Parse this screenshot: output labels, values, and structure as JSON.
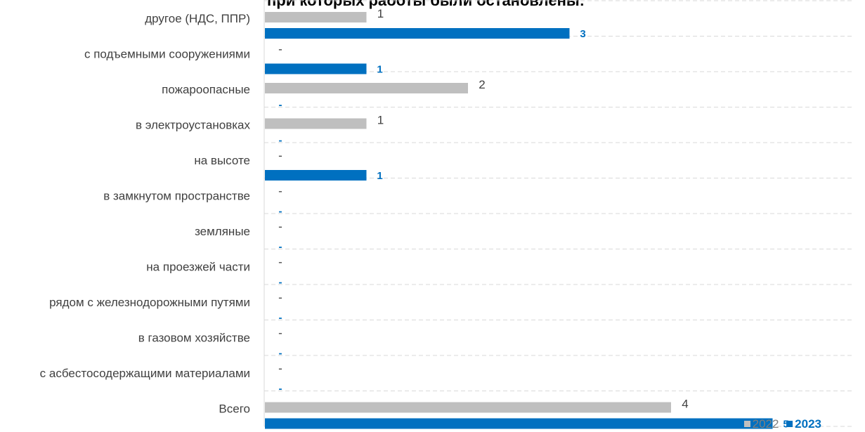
{
  "chart_data": {
    "type": "bar",
    "orientation": "horizontal",
    "title": "при которых работы были остановлены:",
    "categories": [
      "другое (НДС, ППР)",
      "с подъемными сооружениями",
      "пожароопасные",
      "в электроустановках",
      "на высоте",
      "в замкнутом пространстве",
      "земляные",
      "на проезжей части",
      "рядом с железнодорожными путями",
      "в газовом хозяйстве",
      "с асбестосодержащими материалами",
      "Всего"
    ],
    "series": [
      {
        "name": "2022",
        "color": "#bfbfbf",
        "values": [
          1,
          null,
          2,
          1,
          null,
          null,
          null,
          null,
          null,
          null,
          null,
          4
        ]
      },
      {
        "name": "2023",
        "color": "#0070c0",
        "values": [
          3,
          1,
          null,
          null,
          1,
          null,
          null,
          null,
          null,
          null,
          null,
          5
        ]
      }
    ],
    "missing_label": "-",
    "xlim": [
      0,
      5
    ],
    "grid": true,
    "legend": "bottom-right"
  }
}
